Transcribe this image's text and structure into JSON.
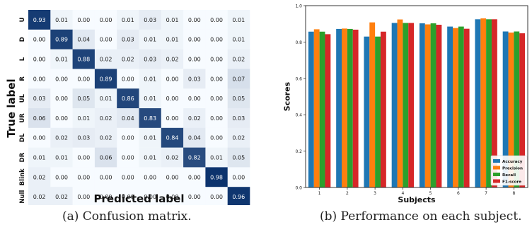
{
  "captions": {
    "a": "(a)  Confusion matrix.",
    "b": "(b)  Performance on each subject."
  },
  "chart_data": [
    {
      "type": "heatmap",
      "title": "",
      "xlabel": "Predicted label",
      "ylabel": "True label",
      "x_categories": [
        "U",
        "D",
        "L",
        "R",
        "UL",
        "UR",
        "DL",
        "DR",
        "Blink",
        "Null"
      ],
      "y_categories": [
        "U",
        "D",
        "L",
        "R",
        "UL",
        "UR",
        "DL",
        "DR",
        "Blink",
        "Null"
      ],
      "colormap": "Blues",
      "colors": {
        "low": "#f7fbff",
        "high": "#08306b"
      },
      "values": [
        [
          0.93,
          0.01,
          0.0,
          0.0,
          0.01,
          0.03,
          0.01,
          0.0,
          0.0,
          0.01
        ],
        [
          0.0,
          0.89,
          0.04,
          0.0,
          0.03,
          0.01,
          0.01,
          0.0,
          0.0,
          0.01
        ],
        [
          0.0,
          0.01,
          0.88,
          0.02,
          0.02,
          0.03,
          0.02,
          0.0,
          0.0,
          0.02
        ],
        [
          0.0,
          0.0,
          0.0,
          0.89,
          0.0,
          0.01,
          0.0,
          0.03,
          0.0,
          0.07
        ],
        [
          0.03,
          0.0,
          0.05,
          0.01,
          0.86,
          0.01,
          0.0,
          0.0,
          0.0,
          0.05
        ],
        [
          0.06,
          0.0,
          0.01,
          0.02,
          0.04,
          0.83,
          0.0,
          0.02,
          0.0,
          0.03
        ],
        [
          0.0,
          0.02,
          0.03,
          0.02,
          0.0,
          0.01,
          0.84,
          0.04,
          0.0,
          0.02
        ],
        [
          0.01,
          0.01,
          0.0,
          0.06,
          0.0,
          0.01,
          0.02,
          0.82,
          0.01,
          0.05
        ],
        [
          0.02,
          0.0,
          0.0,
          0.0,
          0.0,
          0.0,
          0.0,
          0.0,
          0.98,
          0.0
        ],
        [
          0.02,
          0.02,
          0.0,
          0.0,
          0.0,
          0.0,
          0.0,
          0.0,
          0.0,
          0.96
        ]
      ]
    },
    {
      "type": "bar",
      "title": "",
      "xlabel": "Subjects",
      "ylabel": "Scores",
      "categories": [
        "1",
        "2",
        "3",
        "4",
        "5",
        "6",
        "7",
        "8"
      ],
      "ylim": [
        0.0,
        1.0
      ],
      "yticks": [
        "0.0",
        "0.2",
        "0.4",
        "0.6",
        "0.8",
        "1.0"
      ],
      "legend_position": "bottom-right",
      "series": [
        {
          "name": "Accuracy",
          "color": "#1f77b4",
          "values": [
            0.857,
            0.872,
            0.83,
            0.905,
            0.903,
            0.885,
            0.925,
            0.858
          ]
        },
        {
          "name": "Precision",
          "color": "#ff7f0e",
          "values": [
            0.87,
            0.874,
            0.908,
            0.924,
            0.897,
            0.877,
            0.93,
            0.852
          ]
        },
        {
          "name": "Recall",
          "color": "#2ca02c",
          "values": [
            0.857,
            0.872,
            0.83,
            0.905,
            0.903,
            0.885,
            0.925,
            0.858
          ]
        },
        {
          "name": "F1-score",
          "color": "#d62728",
          "values": [
            0.843,
            0.868,
            0.857,
            0.905,
            0.895,
            0.873,
            0.925,
            0.848
          ]
        }
      ]
    }
  ]
}
